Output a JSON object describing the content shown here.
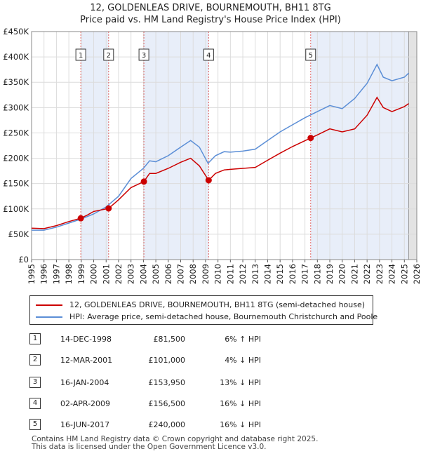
{
  "chart_data": {
    "type": "line",
    "title": "12, GOLDENLEAS DRIVE, BOURNEMOUTH, BH11 8TG",
    "subtitle": "Price paid vs. HM Land Registry's House Price Index (HPI)",
    "xlim": [
      1995,
      2026
    ],
    "ylim": [
      0,
      450000
    ],
    "xticks": [
      "1995",
      "1996",
      "1997",
      "1998",
      "1999",
      "2000",
      "2001",
      "2002",
      "2003",
      "2004",
      "2005",
      "2006",
      "2007",
      "2008",
      "2009",
      "2010",
      "2011",
      "2012",
      "2013",
      "2014",
      "2015",
      "2016",
      "2017",
      "2018",
      "2019",
      "2020",
      "2021",
      "2022",
      "2023",
      "2024",
      "2025",
      "2026"
    ],
    "yticks": [
      {
        "value": 0,
        "label": "£0"
      },
      {
        "value": 50000,
        "label": "£50K"
      },
      {
        "value": 100000,
        "label": "£100K"
      },
      {
        "value": 150000,
        "label": "£150K"
      },
      {
        "value": 200000,
        "label": "£200K"
      },
      {
        "value": 250000,
        "label": "£250K"
      },
      {
        "value": 300000,
        "label": "£300K"
      },
      {
        "value": 350000,
        "label": "£350K"
      },
      {
        "value": 400000,
        "label": "£400K"
      },
      {
        "value": 450000,
        "label": "£450K"
      }
    ],
    "series": [
      {
        "name": "12, GOLDENLEAS DRIVE, BOURNEMOUTH, BH11 8TG (semi-detached house)",
        "color": "#cc0000",
        "x": [
          1995,
          1996,
          1997,
          1998,
          1998.96,
          1999.5,
          2000,
          2001.2,
          2002,
          2003,
          2004.04,
          2004.5,
          2005,
          2006,
          2007,
          2007.8,
          2008.5,
          2009.25,
          2009.8,
          2010.5,
          2011,
          2012,
          2013,
          2014,
          2015,
          2016,
          2017.46,
          2018,
          2019,
          2020,
          2021,
          2022,
          2022.8,
          2023.3,
          2024,
          2025,
          2025.35
        ],
        "values": [
          62000,
          61000,
          67000,
          75000,
          81500,
          88000,
          95000,
          101000,
          118000,
          142000,
          153950,
          170000,
          170000,
          180000,
          192000,
          200000,
          185000,
          156500,
          170000,
          177000,
          178000,
          180000,
          182000,
          196000,
          210000,
          223000,
          240000,
          246000,
          258000,
          252000,
          258000,
          285000,
          320000,
          300000,
          292000,
          302000,
          308000
        ]
      },
      {
        "name": "HPI: Average price, semi-detached house, Bournemouth Christchurch and Poole",
        "color": "#5b8ed6",
        "x": [
          1995,
          1996,
          1997,
          1998,
          1999,
          2000,
          2001,
          2002,
          2003,
          2004,
          2004.5,
          2005,
          2006,
          2007,
          2007.8,
          2008.5,
          2009.2,
          2009.8,
          2010.5,
          2011,
          2012,
          2013,
          2014,
          2015,
          2016,
          2017,
          2018,
          2019,
          2020,
          2021,
          2022,
          2022.8,
          2023.3,
          2024,
          2025,
          2025.35
        ],
        "values": [
          58000,
          58000,
          64000,
          72000,
          80000,
          90000,
          104000,
          125000,
          160000,
          180000,
          195000,
          193000,
          205000,
          222000,
          235000,
          222000,
          190000,
          205000,
          213000,
          212000,
          214000,
          218000,
          235000,
          252000,
          266000,
          280000,
          292000,
          304000,
          298000,
          318000,
          348000,
          385000,
          360000,
          353000,
          360000,
          368000
        ]
      }
    ],
    "sales": [
      {
        "n": "1",
        "x": 1998.96,
        "value": 81500
      },
      {
        "n": "2",
        "x": 2001.2,
        "value": 101000
      },
      {
        "n": "3",
        "x": 2004.04,
        "value": 153950
      },
      {
        "n": "4",
        "x": 2009.25,
        "value": 156500
      },
      {
        "n": "5",
        "x": 2017.46,
        "value": 240000
      }
    ],
    "shaded_spans": [
      [
        1998.96,
        2001.2
      ],
      [
        2004.04,
        2009.25
      ],
      [
        2017.46,
        2025.35
      ]
    ],
    "forecast_start": 2025.35
  },
  "legend": {
    "property": "12, GOLDENLEAS DRIVE, BOURNEMOUTH, BH11 8TG (semi-detached house)",
    "hpi": "HPI: Average price, semi-detached house, Bournemouth Christchurch and Poole"
  },
  "transactions": [
    {
      "n": "1",
      "date": "14-DEC-1998",
      "price": "£81,500",
      "diff": "6% ↑ HPI"
    },
    {
      "n": "2",
      "date": "12-MAR-2001",
      "price": "£101,000",
      "diff": "4% ↓ HPI"
    },
    {
      "n": "3",
      "date": "16-JAN-2004",
      "price": "£153,950",
      "diff": "13% ↓ HPI"
    },
    {
      "n": "4",
      "date": "02-APR-2009",
      "price": "£156,500",
      "diff": "16% ↓ HPI"
    },
    {
      "n": "5",
      "date": "16-JUN-2017",
      "price": "£240,000",
      "diff": "16% ↓ HPI"
    }
  ],
  "footer": {
    "line1": "Contains HM Land Registry data © Crown copyright and database right 2025.",
    "line2": "This data is licensed under the Open Government Licence v3.0."
  }
}
